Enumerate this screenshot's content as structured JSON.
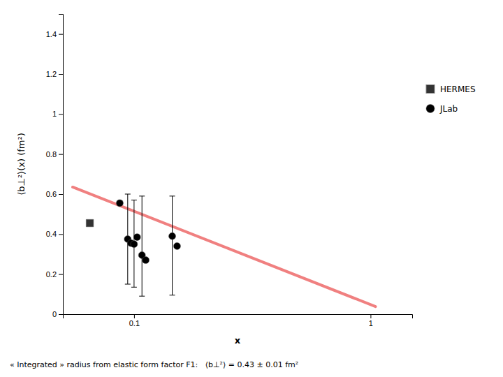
{
  "chart_data": {
    "type": "scatter",
    "x_label": "x",
    "y_label": "⟨b⊥²⟩(x) (fm²)",
    "annotation": "« Integrated » radius from elastic form factor F1:   ⟨b⊥²⟩ = 0.43 ± 0.01 fm²",
    "log": "x",
    "grid": false,
    "legend": "right",
    "xlim": [
      0.05,
      1.5
    ],
    "xticks": [
      0.1,
      1
    ],
    "ylim": [
      0,
      1.5
    ],
    "yticks": [
      0,
      0.2,
      0.4,
      0.6,
      0.8,
      1,
      1.2,
      1.4
    ],
    "series": [
      {
        "type": "line",
        "color": "#f08080",
        "x": [
          0.055,
          1.05
        ],
        "values": [
          0.635,
          0.038
        ]
      },
      {
        "name": "HERMES",
        "type": "scatter",
        "marker": "square",
        "color": "#333333",
        "x": [
          0.065
        ],
        "values": [
          0.455
        ]
      },
      {
        "name": "JLab",
        "type": "scatter",
        "marker": "circle",
        "color": "black",
        "x": [
          0.087,
          0.094,
          0.097,
          0.1,
          0.103,
          0.108,
          0.112,
          0.145,
          0.152
        ],
        "values": [
          0.555,
          0.375,
          0.355,
          0.35,
          0.385,
          0.295,
          0.27,
          0.39,
          0.34
        ],
        "error_low": [
          null,
          0.15,
          null,
          0.135,
          null,
          0.09,
          null,
          0.095,
          null
        ],
        "error_high": [
          null,
          0.6,
          null,
          0.57,
          null,
          0.59,
          null,
          0.59,
          null
        ]
      }
    ]
  }
}
